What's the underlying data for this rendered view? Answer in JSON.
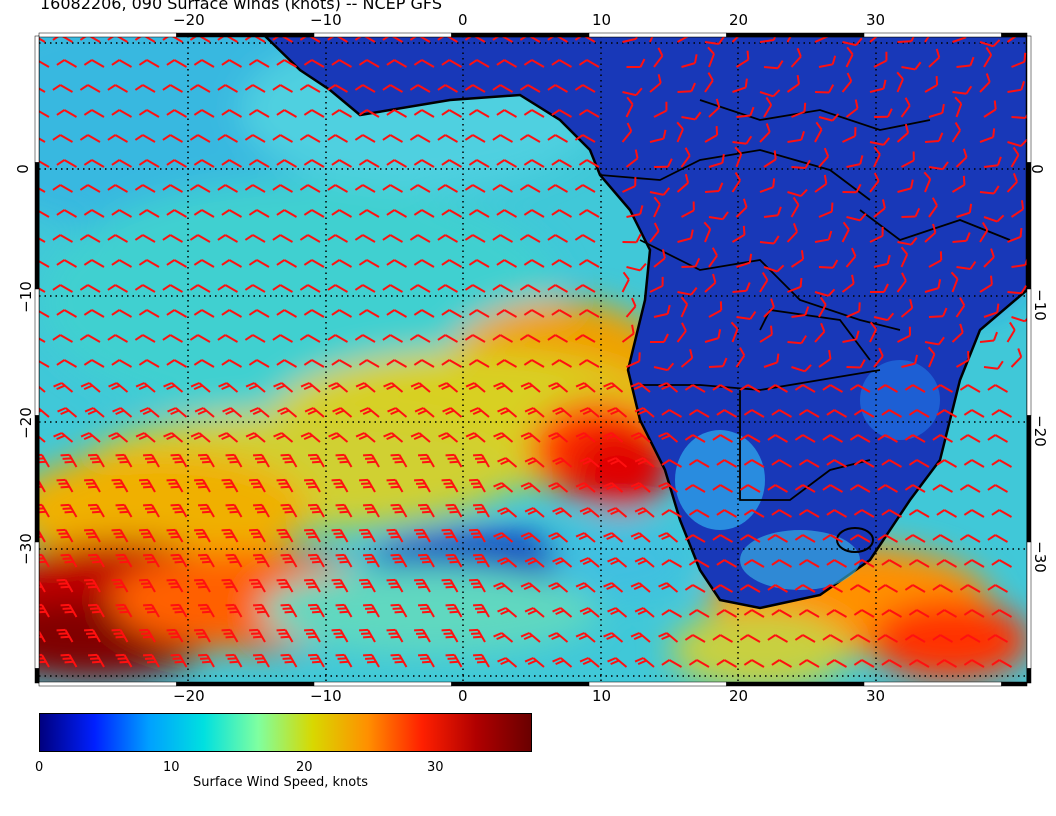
{
  "title": "16082206, 090 Surface winds (knots) -- NCEP GFS",
  "axes": {
    "top_lon_labels": [
      "−20",
      "−10",
      "0",
      "10",
      "20",
      "30"
    ],
    "bottom_lon_labels": [
      "−20",
      "−10",
      "0",
      "10",
      "20",
      "30"
    ],
    "left_lat_labels": [
      "0",
      "−10",
      "−20",
      "−30"
    ],
    "right_lat_labels": [
      "0",
      "−10",
      "−20",
      "−30"
    ]
  },
  "colorbar": {
    "title": "Surface Wind Speed, knots",
    "tick_labels": [
      "0",
      "10",
      "20",
      "30"
    ],
    "colors": [
      "#00007f",
      "#0020ff",
      "#00a0ff",
      "#00e0e0",
      "#7fffa0",
      "#d8d800",
      "#ff9000",
      "#ff2000",
      "#b00000",
      "#6a0000"
    ]
  },
  "map": {
    "ocean_calm_color": "#2050d0",
    "land_color": "#1838b8",
    "barb_color": "#ff1010",
    "grid": "dotted",
    "coastline_color": "#000000"
  }
}
